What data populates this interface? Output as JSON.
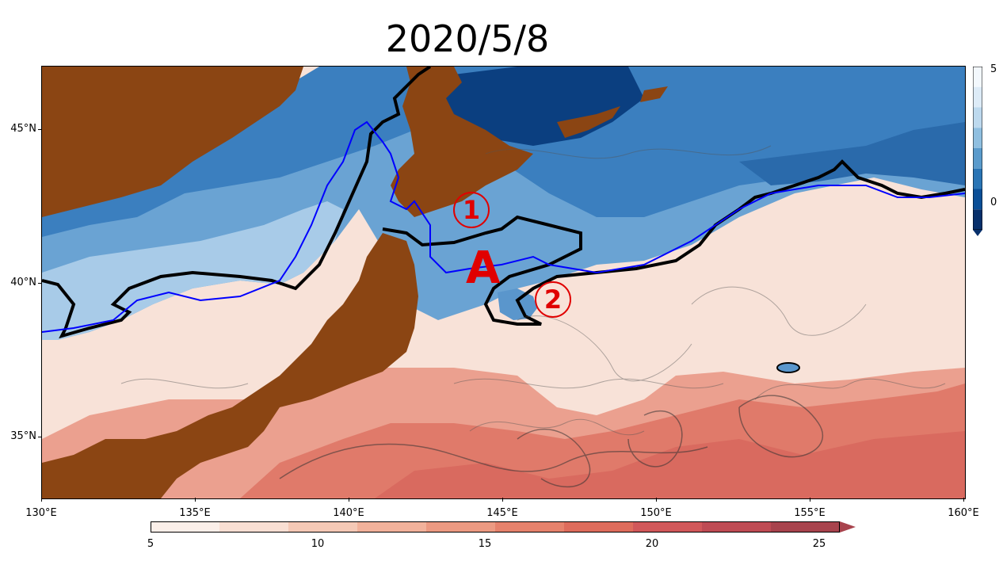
{
  "title": "2020/5/8",
  "lat_labels": [
    {
      "lat": 45,
      "label": "45°N"
    },
    {
      "lat": 40,
      "label": "40°N"
    },
    {
      "lat": 35,
      "label": "35°N"
    }
  ],
  "lon_labels": [
    {
      "lon": 130,
      "label": "130°E"
    },
    {
      "lon": 135,
      "label": "135°E"
    },
    {
      "lon": 140,
      "label": "140°E"
    },
    {
      "lon": 145,
      "label": "145°E"
    },
    {
      "lon": 150,
      "label": "150°E"
    },
    {
      "lon": 155,
      "label": "155°E"
    },
    {
      "lon": 160,
      "label": "160°E"
    }
  ],
  "extent": {
    "lon_min": 130,
    "lon_max": 160,
    "lat_min": 33,
    "lat_max": 47
  },
  "colorbar_right": {
    "ticks": [
      {
        "value": 5,
        "label": "5"
      },
      {
        "value": 0,
        "label": "0"
      }
    ],
    "range": [
      -1,
      5
    ],
    "colors": [
      "#08306b",
      "#0b4f97",
      "#2a75b5",
      "#5a9bcc",
      "#8fbfe0",
      "#bdd9ee",
      "#ddebf7",
      "#f3f8fd"
    ]
  },
  "colorbar_bottom": {
    "ticks": [
      {
        "value": 5,
        "label": "5"
      },
      {
        "value": 10,
        "label": "10"
      },
      {
        "value": 15,
        "label": "15"
      },
      {
        "value": 20,
        "label": "20"
      },
      {
        "value": 25,
        "label": "25"
      }
    ],
    "range": [
      5,
      26
    ],
    "colors": [
      "#fbefe9",
      "#f9dfd3",
      "#f5c9b6",
      "#f2b29b",
      "#ec9a82",
      "#e6826c",
      "#de6c5c",
      "#d1585a",
      "#bf4b54",
      "#a8434d"
    ]
  },
  "markers": {
    "one": "1",
    "two": "2",
    "a": "A"
  },
  "colors": {
    "land": "#8b4513",
    "cold_front": "#000000",
    "blue_line": "#0000ff",
    "marker": "#e00000"
  }
}
